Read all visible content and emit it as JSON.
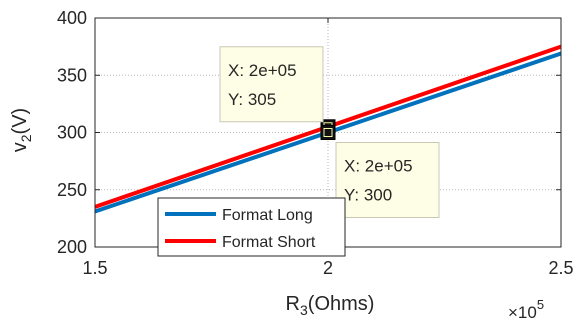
{
  "chart_data": {
    "type": "line",
    "xlabel_main": "R",
    "xlabel_sub": "3",
    "xlabel_rest": "(Ohms)",
    "ylabel_main": "v",
    "ylabel_sub": "2",
    "ylabel_rest": "(V)",
    "x_multiplier_base": "×10",
    "x_multiplier_exp": "5",
    "xlim": [
      150000,
      250000
    ],
    "ylim": [
      200,
      400
    ],
    "xticks": [
      150000,
      200000,
      250000
    ],
    "xtick_labels": [
      "1.5",
      "2",
      "2.5"
    ],
    "yticks": [
      200,
      250,
      300,
      350,
      400
    ],
    "ytick_labels": [
      "200",
      "250",
      "300",
      "350",
      "400"
    ],
    "grid": true,
    "legend_position": "bottom-center",
    "series": [
      {
        "name": "Format Long",
        "color": "#0072BD",
        "x": [
          150000,
          250000
        ],
        "y": [
          231,
          369
        ]
      },
      {
        "name": "Format Short",
        "color": "#ff0000",
        "x": [
          150000,
          250000
        ],
        "y": [
          235,
          375
        ]
      }
    ],
    "annotations": [
      {
        "x_label": "X: 2e+05",
        "y_label": "Y: 305",
        "x": 200000,
        "y": 305,
        "box_side": "upper-left"
      },
      {
        "x_label": "X: 2e+05",
        "y_label": "Y: 300",
        "x": 200000,
        "y": 300,
        "box_side": "lower-right"
      }
    ]
  }
}
